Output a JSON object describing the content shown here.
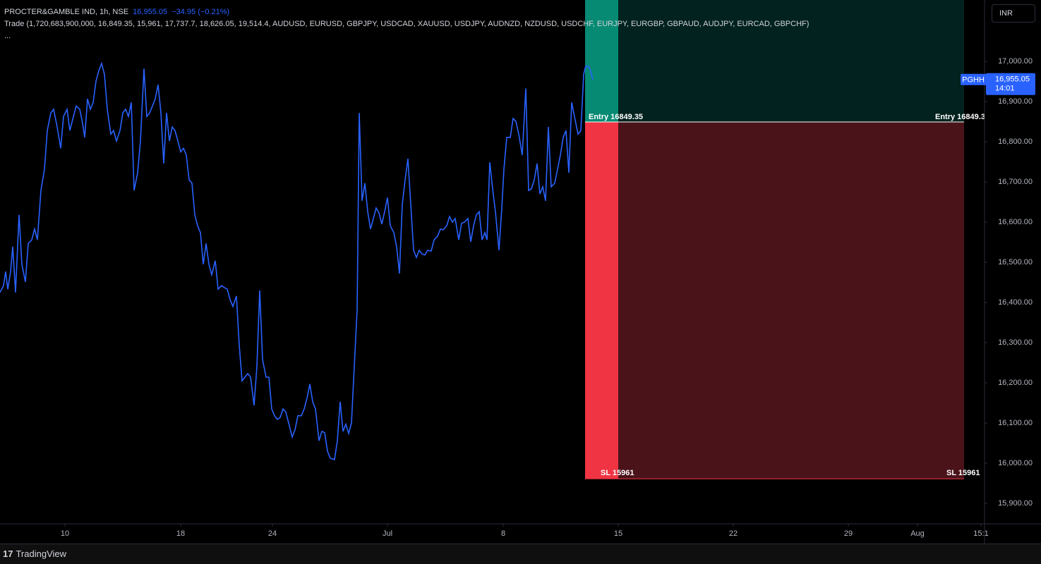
{
  "header": {
    "symbol": "PROCTER&GAMBLE IND, 1h, NSE",
    "price": "16,955.05",
    "change": "−34.95 (−0.21%)",
    "indicator": "Trade (1,720,683,900,000, 16,849.35, 15,961, 17,737.7, 18,626.05, 19,514.4, AUDUSD, EURUSD, GBPJPY, USDCAD, XAUUSD, USDJPY, AUDNZD, NZDUSD, USDCHF, EURJPY, EURGBP, GBPAUD, AUDJPY, EURCAD, GBPCHF)",
    "more": "..."
  },
  "currency": "INR",
  "chart_data": {
    "type": "line",
    "x": [
      0,
      1,
      1.6,
      2.2,
      3,
      3.6,
      4.4,
      5.4,
      6.2,
      7.2,
      8,
      9,
      9.8,
      10.6,
      11.6,
      12.6,
      13.4,
      14.4,
      15.2,
      16.2,
      17.2,
      18,
      19,
      19.8,
      20.8,
      21.6,
      22.6,
      23.4,
      24,
      24.8,
      25.6,
      26.4,
      27.2,
      28,
      28.8,
      29.6,
      30.4,
      31.4,
      32.2,
      33,
      34,
      34.8,
      35.6,
      36.4,
      37.2,
      38,
      39,
      39.8,
      40.8,
      41.6,
      42.4,
      43.2,
      44,
      44.8,
      45.6,
      46.4,
      47.2,
      48,
      48.8,
      49.6,
      50.4,
      51.2,
      52,
      52.8,
      53.6,
      54.4,
      55.2,
      56,
      56.8,
      57.6,
      58.4,
      59.2,
      60,
      61,
      61.8,
      62.8,
      63.6,
      64.4,
      65.2,
      66,
      67,
      67.8,
      68.6,
      69.4,
      70.2,
      71,
      72,
      72.8,
      73.6,
      74.4,
      75.4,
      76.2,
      77,
      77.8,
      78.6,
      79.4,
      80.2,
      81,
      81.8,
      82.8,
      83.6,
      84.4,
      85.4,
      86.2,
      87,
      87.8,
      88.6,
      89.4,
      90.4,
      91.2,
      92,
      92.8,
      93.6,
      94.8,
      95.6,
      96.4,
      97.2,
      98,
      98.8,
      99.6,
      100.4,
      101.2,
      101.8,
      102.6,
      103.4,
      104.2,
      105,
      105.8,
      106.6,
      107.4,
      108.2,
      109,
      109.8,
      110.6,
      111.6,
      112.4,
      113.2,
      114,
      114.8,
      115.6,
      116.4,
      117.2,
      118,
      118.8,
      119.6,
      120.4,
      121.2,
      122.2,
      123,
      124,
      124.8,
      125.6,
      126.6,
      127.4,
      128.2,
      129,
      130,
      130.8,
      131.6,
      132.6,
      133.4,
      134.2,
      135,
      135.8,
      136.6,
      137.4,
      138,
      138.8,
      139.6,
      140.4,
      141.4,
      142.2,
      142.8,
      143.6,
      144.6,
      145.4,
      146.2,
      147,
      148,
      149,
      149.8,
      150.6,
      151.4,
      152.2,
      153,
      153.8,
      154.6,
      155.4,
      156.2,
      157.2,
      158,
      158.8,
      159.6,
      160.4,
      161.2,
      162,
      163,
      163.8,
      164.6,
      165.4,
      166,
      167,
      168
    ],
    "series": [
      {
        "name": "PGHH",
        "color": "#2962ff",
        "values": [
          16425,
          16442,
          16477,
          16433,
          16477,
          16539,
          16425,
          16618,
          16495,
          16451,
          16547,
          16556,
          16583,
          16556,
          16679,
          16732,
          16828,
          16872,
          16881,
          16837,
          16784,
          16863,
          16881,
          16828,
          16863,
          16889,
          16881,
          16846,
          16811,
          16907,
          16881,
          16898,
          16951,
          16977,
          16995,
          16968,
          16881,
          16819,
          16828,
          16802,
          16828,
          16872,
          16881,
          16863,
          16898,
          16679,
          16723,
          16802,
          16982,
          16863,
          16872,
          16889,
          16907,
          16942,
          16872,
          16746,
          16872,
          16802,
          16837,
          16828,
          16802,
          16775,
          16784,
          16767,
          16705,
          16697,
          16618,
          16591,
          16574,
          16495,
          16547,
          16495,
          16469,
          16504,
          16433,
          16442,
          16437,
          16433,
          16407,
          16390,
          16416,
          16293,
          16205,
          16214,
          16223,
          16214,
          16144,
          16241,
          16430,
          16258,
          16214,
          16214,
          16135,
          16118,
          16109,
          16114,
          16135,
          16127,
          16100,
          16065,
          16083,
          16118,
          16118,
          16135,
          16162,
          16197,
          16153,
          16135,
          16056,
          16079,
          16076,
          16030,
          16012,
          16009,
          16056,
          16153,
          16079,
          16097,
          16074,
          16100,
          16241,
          16381,
          16872,
          16653,
          16697,
          16626,
          16583,
          16609,
          16635,
          16623,
          16595,
          16626,
          16661,
          16591,
          16574,
          16539,
          16472,
          16644,
          16705,
          16758,
          16644,
          16530,
          16512,
          16530,
          16521,
          16518,
          16530,
          16528,
          16556,
          16565,
          16583,
          16581,
          16591,
          16614,
          16600,
          16609,
          16556,
          16597,
          16600,
          16609,
          16551,
          16591,
          16618,
          16626,
          16556,
          16574,
          16556,
          16749,
          16683,
          16626,
          16530,
          16635,
          16732,
          16811,
          16811,
          16858,
          16851,
          16819,
          16767,
          16933,
          16679,
          16683,
          16705,
          16746,
          16670,
          16688,
          16653,
          16837,
          16688,
          16697,
          16732,
          16767,
          16811,
          16828,
          16723,
          16898,
          16854,
          16819,
          16828,
          16968,
          16989,
          16986,
          16955
        ]
      }
    ],
    "xlim": [
      0,
      279
    ],
    "xticks": [
      {
        "value": 18.4,
        "label": "10"
      },
      {
        "value": 51.2,
        "label": "18"
      },
      {
        "value": 77.2,
        "label": "24"
      },
      {
        "value": 109.8,
        "label": "Jul"
      },
      {
        "value": 142.6,
        "label": "8"
      },
      {
        "value": 175.2,
        "label": "15"
      },
      {
        "value": 207.8,
        "label": "22"
      },
      {
        "value": 240.4,
        "label": "29"
      },
      {
        "value": 260,
        "label": "Aug"
      },
      {
        "value": 278,
        "label": "15:1"
      }
    ],
    "ylim": [
      15849,
      17153
    ],
    "yticks": [
      {
        "value": 15900,
        "label": "15,900.00"
      },
      {
        "value": 16000,
        "label": "16,000.00"
      },
      {
        "value": 16100,
        "label": "16,100.00"
      },
      {
        "value": 16200,
        "label": "16,200.00"
      },
      {
        "value": 16300,
        "label": "16,300.00"
      },
      {
        "value": 16400,
        "label": "16,400.00"
      },
      {
        "value": 16500,
        "label": "16,500.00"
      },
      {
        "value": 16600,
        "label": "16,600.00"
      },
      {
        "value": 16700,
        "label": "16,700.00"
      },
      {
        "value": 16800,
        "label": "16,800.00"
      },
      {
        "value": 16900,
        "label": "16,900.00"
      },
      {
        "value": 17000,
        "label": "17,000.00"
      }
    ],
    "last_price": {
      "value": 16955.05,
      "label": "16,955.05"
    },
    "countdown": "14:01",
    "position": {
      "entry": 16849.35,
      "stop": 15961,
      "entry_label": "Entry 16849.35",
      "stop_label": "SL 15961",
      "x_start": 165.8,
      "x_highlight_end": 175.2,
      "x_end": 273.2
    }
  },
  "footer": {
    "brand": "TradingView"
  }
}
